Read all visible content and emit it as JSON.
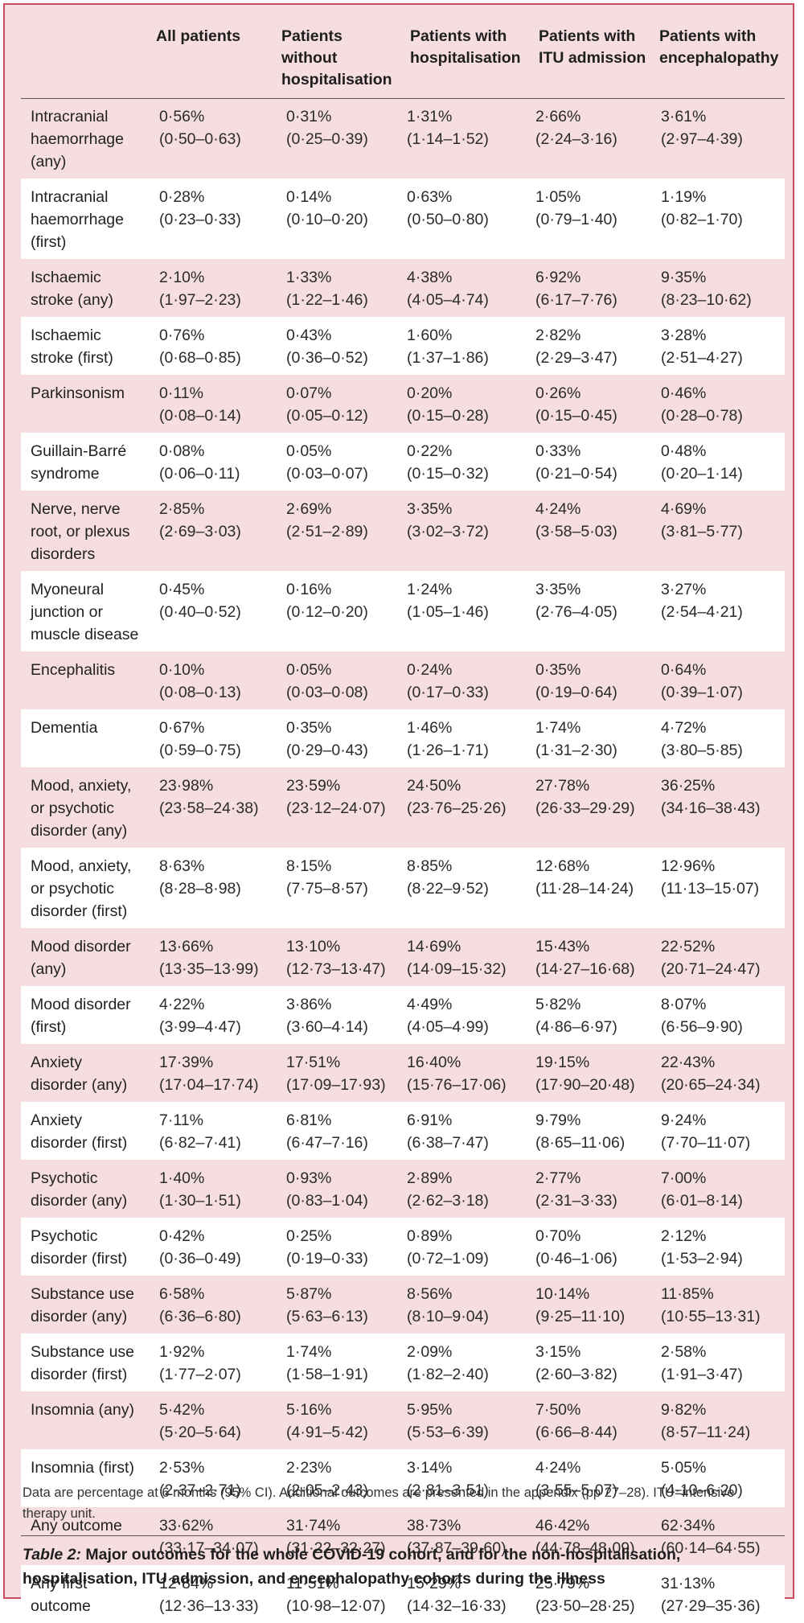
{
  "columns": {
    "all": "All patients",
    "nohosp": "Patients without hospitalisation",
    "hosp": "Patients with hospitalisation",
    "itu": "Patients with ITU admission",
    "enc": "Patients with encephalopathy"
  },
  "rows": [
    {
      "label": "Intracranial haemorrhage (any)",
      "values": [
        [
          "0·56%",
          "(0·50–0·63)"
        ],
        [
          "0·31%",
          "(0·25–0·39)"
        ],
        [
          "1·31%",
          "(1·14–1·52)"
        ],
        [
          "2·66%",
          "(2·24–3·16)"
        ],
        [
          "3·61%",
          "(2·97–4·39)"
        ]
      ]
    },
    {
      "label": "Intracranial haemorrhage (first)",
      "values": [
        [
          "0·28%",
          "(0·23–0·33)"
        ],
        [
          "0·14%",
          "(0·10–0·20)"
        ],
        [
          "0·63%",
          "(0·50–0·80)"
        ],
        [
          "1·05%",
          "(0·79–1·40)"
        ],
        [
          "1·19%",
          "(0·82–1·70)"
        ]
      ]
    },
    {
      "label": "Ischaemic stroke (any)",
      "values": [
        [
          "2·10%",
          "(1·97–2·23)"
        ],
        [
          "1·33%",
          "(1·22–1·46)"
        ],
        [
          "4·38%",
          "(4·05–4·74)"
        ],
        [
          "6·92%",
          "(6·17–7·76)"
        ],
        [
          "9·35%",
          "(8·23–10·62)"
        ]
      ]
    },
    {
      "label": "Ischaemic stroke (first)",
      "values": [
        [
          "0·76%",
          "(0·68–0·85)"
        ],
        [
          "0·43%",
          "(0·36–0·52)"
        ],
        [
          "1·60%",
          "(1·37–1·86)"
        ],
        [
          "2·82%",
          "(2·29–3·47)"
        ],
        [
          "3·28%",
          "(2·51–4·27)"
        ]
      ]
    },
    {
      "label": "Parkinsonism",
      "values": [
        [
          "0·11%",
          "(0·08–0·14)"
        ],
        [
          "0·07%",
          "(0·05–0·12)"
        ],
        [
          "0·20%",
          "(0·15–0·28)"
        ],
        [
          "0·26%",
          "(0·15–0·45)"
        ],
        [
          "0·46%",
          "(0·28–0·78)"
        ]
      ]
    },
    {
      "label": "Guillain-Barré syndrome",
      "values": [
        [
          "0·08%",
          "(0·06–0·11)"
        ],
        [
          "0·05%",
          "(0·03–0·07)"
        ],
        [
          "0·22%",
          "(0·15–0·32)"
        ],
        [
          "0·33%",
          "(0·21–0·54)"
        ],
        [
          "0·48%",
          "(0·20–1·14)"
        ]
      ]
    },
    {
      "label": "Nerve, nerve root, or plexus disorders",
      "values": [
        [
          "2·85%",
          "(2·69–3·03)"
        ],
        [
          "2·69%",
          "(2·51–2·89)"
        ],
        [
          "3·35%",
          "(3·02–3·72)"
        ],
        [
          "4·24%",
          "(3·58–5·03)"
        ],
        [
          "4·69%",
          "(3·81–5·77)"
        ]
      ]
    },
    {
      "label": "Myoneural junction or muscle disease",
      "values": [
        [
          "0·45%",
          "(0·40–0·52)"
        ],
        [
          "0·16%",
          "(0·12–0·20)"
        ],
        [
          "1·24%",
          "(1·05–1·46)"
        ],
        [
          "3·35%",
          "(2·76–4·05)"
        ],
        [
          "3·27%",
          "(2·54–4·21)"
        ]
      ]
    },
    {
      "label": "Encephalitis",
      "values": [
        [
          "0·10%",
          "(0·08–0·13)"
        ],
        [
          "0·05%",
          "(0·03–0·08)"
        ],
        [
          "0·24%",
          "(0·17–0·33)"
        ],
        [
          "0·35%",
          "(0·19–0·64)"
        ],
        [
          "0·64%",
          "(0·39–1·07)"
        ]
      ]
    },
    {
      "label": "Dementia",
      "values": [
        [
          "0·67%",
          "(0·59–0·75)"
        ],
        [
          "0·35%",
          "(0·29–0·43)"
        ],
        [
          "1·46%",
          "(1·26–1·71)"
        ],
        [
          "1·74%",
          "(1·31–2·30)"
        ],
        [
          "4·72%",
          "(3·80–5·85)"
        ]
      ]
    },
    {
      "label": "Mood, anxiety, or psychotic disorder (any)",
      "values": [
        [
          "23·98%",
          "(23·58–24·38)"
        ],
        [
          "23·59%",
          "(23·12–24·07)"
        ],
        [
          "24·50%",
          "(23·76–25·26)"
        ],
        [
          "27·78%",
          "(26·33–29·29)"
        ],
        [
          "36·25%",
          "(34·16–38·43)"
        ]
      ]
    },
    {
      "label": "Mood, anxiety, or psychotic disorder (first)",
      "values": [
        [
          "8·63%",
          "(8·28–8·98)"
        ],
        [
          "8·15%",
          "(7·75–8·57)"
        ],
        [
          "8·85%",
          "(8·22–9·52)"
        ],
        [
          "12·68%",
          "(11·28–14·24)"
        ],
        [
          "12·96%",
          "(11·13–15·07)"
        ]
      ]
    },
    {
      "label": "Mood disorder (any)",
      "values": [
        [
          "13·66%",
          "(13·35–13·99)"
        ],
        [
          "13·10%",
          "(12·73–13·47)"
        ],
        [
          "14·69%",
          "(14·09–15·32)"
        ],
        [
          "15·43%",
          "(14·27–16·68)"
        ],
        [
          "22·52%",
          "(20·71–24·47)"
        ]
      ]
    },
    {
      "label": "Mood disorder (first)",
      "values": [
        [
          "4·22%",
          "(3·99–4·47)"
        ],
        [
          "3·86%",
          "(3·60–4·14)"
        ],
        [
          "4·49%",
          "(4·05–4·99)"
        ],
        [
          "5·82%",
          "(4·86–6·97)"
        ],
        [
          "8·07%",
          "(6·56–9·90)"
        ]
      ]
    },
    {
      "label": "Anxiety disorder (any)",
      "values": [
        [
          "17·39%",
          "(17·04–17·74)"
        ],
        [
          "17·51%",
          "(17·09–17·93)"
        ],
        [
          "16·40%",
          "(15·76–17·06)"
        ],
        [
          "19·15%",
          "(17·90–20·48)"
        ],
        [
          "22·43%",
          "(20·65–24·34)"
        ]
      ]
    },
    {
      "label": "Anxiety disorder (first)",
      "values": [
        [
          "7·11%",
          "(6·82–7·41)"
        ],
        [
          "6·81%",
          "(6·47–7·16)"
        ],
        [
          "6·91%",
          "(6·38–7·47)"
        ],
        [
          "9·79%",
          "(8·65–11·06)"
        ],
        [
          "9·24%",
          "(7·70–11·07)"
        ]
      ]
    },
    {
      "label": "Psychotic disorder (any)",
      "values": [
        [
          "1·40%",
          "(1·30–1·51)"
        ],
        [
          "0·93%",
          "(0·83–1·04)"
        ],
        [
          "2·89%",
          "(2·62–3·18)"
        ],
        [
          "2·77%",
          "(2·31–3·33)"
        ],
        [
          "7·00%",
          "(6·01–8·14)"
        ]
      ]
    },
    {
      "label": "Psychotic disorder (first)",
      "values": [
        [
          "0·42%",
          "(0·36–0·49)"
        ],
        [
          "0·25%",
          "(0·19–0·33)"
        ],
        [
          "0·89%",
          "(0·72–1·09)"
        ],
        [
          "0·70%",
          "(0·46–1·06)"
        ],
        [
          "2·12%",
          "(1·53–2·94)"
        ]
      ]
    },
    {
      "label": "Substance use disorder (any)",
      "values": [
        [
          "6·58%",
          "(6·36–6·80)"
        ],
        [
          "5·87%",
          "(5·63–6·13)"
        ],
        [
          "8·56%",
          "(8·10–9·04)"
        ],
        [
          "10·14%",
          "(9·25–11·10)"
        ],
        [
          "11·85%",
          "(10·55–13·31)"
        ]
      ]
    },
    {
      "label": "Substance use disorder (first)",
      "values": [
        [
          "1·92%",
          "(1·77–2·07)"
        ],
        [
          "1·74%",
          "(1·58–1·91)"
        ],
        [
          "2·09%",
          "(1·82–2·40)"
        ],
        [
          "3·15%",
          "(2·60–3·82)"
        ],
        [
          "2·58%",
          "(1·91–3·47)"
        ]
      ]
    },
    {
      "label": "Insomnia (any)",
      "values": [
        [
          "5·42%",
          "(5·20–5·64)"
        ],
        [
          "5·16%",
          "(4·91–5·42)"
        ],
        [
          "5·95%",
          "(5·53–6·39)"
        ],
        [
          "7·50%",
          "(6·66–8·44)"
        ],
        [
          "9·82%",
          "(8·57–11·24)"
        ]
      ]
    },
    {
      "label": "Insomnia (first)",
      "values": [
        [
          "2·53%",
          "(2·37–2·71)"
        ],
        [
          "2·23%",
          "(2·05–2·43)"
        ],
        [
          "3·14%",
          "(2·81–3·51)"
        ],
        [
          "4·24%",
          "(3·55–5·07)"
        ],
        [
          "5·05%",
          "(4·10–6·20)"
        ]
      ]
    },
    {
      "label": "Any outcome",
      "values": [
        [
          "33·62%",
          "(33·17–34·07)"
        ],
        [
          "31·74%",
          "(31·22–32·27)"
        ],
        [
          "38·73%",
          "(37·87–39·60)"
        ],
        [
          "46·42%",
          "(44·78–48·09)"
        ],
        [
          "62·34%",
          "(60·14–64·55)"
        ]
      ]
    },
    {
      "label": "Any first outcome",
      "values": [
        [
          "12·84%",
          "(12·36–13·33)"
        ],
        [
          "11·51%",
          "(10·98–12·07)"
        ],
        [
          "15·29%",
          "(14·32–16·33)"
        ],
        [
          "25·79%",
          "(23·50–28·25)"
        ],
        [
          "31·13%",
          "(27·29–35·36)"
        ]
      ]
    }
  ],
  "footnote": "Data are percentage at 6 months (95% CI). Additional outcomes are presented in the appendix (pp 27–28). ITU=intensive therapy unit.",
  "caption": {
    "title": "Table 2:",
    "text": " Major outcomes for the whole COVID-19 cohort, and for the non-hospitalisation, hospitalisation, ITU admission, and encephalopathy cohorts during the illness"
  }
}
